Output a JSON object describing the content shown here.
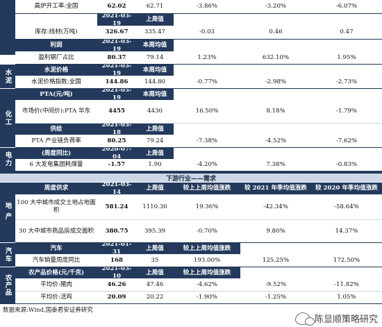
{
  "rows_top": [
    {
      "label": "高炉开工率:全国",
      "v1": "62.02",
      "v2": "62.71",
      "c1": "-3.86%",
      "c2": "-3.20%",
      "c3": "-6.07%"
    },
    {
      "label": "",
      "v1": "2021-03-19",
      "v2": "上周值",
      "header": true
    },
    {
      "label": "库存:线材(万吨)",
      "v1": "326.67",
      "v2": "335.47",
      "c1": "-0.03",
      "c2": "0.46",
      "c3": "0.47"
    },
    {
      "label": "利润",
      "v1": "2021-03-19",
      "v2": "本周均值",
      "header": true
    },
    {
      "label": "盈利钢厂占比",
      "v1": "80.37",
      "v2": "79.14",
      "c1": "1.23%",
      "c2": "632.10%",
      "c3": "1.95%"
    }
  ],
  "sections": {
    "cement": "水泥",
    "chemical": "化工",
    "power": "电力",
    "realestate": "地产",
    "auto": "汽车",
    "agri": "农产品"
  },
  "cement_header": {
    "label": "水泥价格",
    "date": "2021-03-19",
    "col": "本周均值"
  },
  "cement_row": {
    "label": "水泥价格指数:全国",
    "v1": "144.86",
    "v2": "144.80",
    "c1": "-0.77%",
    "c2": "-2.98%",
    "c3": "-2.73%"
  },
  "pta_header": {
    "label": "PTA(元/吨)",
    "date": "2021-03-19",
    "col": "本周均值"
  },
  "pta_row": {
    "label": "市场价(中间价):PTA 华东",
    "v1": "4455",
    "v2": "4430",
    "c1": "16.50%",
    "c2": "8.18%",
    "c3": "-1.79%"
  },
  "pta2_header": {
    "label": "供给",
    "date": "2021-03-18",
    "col": "上周值"
  },
  "pta2_row": {
    "label": "PTA 产业链负荷率",
    "v1": "80.25",
    "v2": "79.24",
    "c1": "-7.38%",
    "c2": "-4.52%",
    "c3": "-7.62%"
  },
  "power_header": {
    "label": "(周度同比)",
    "date": "2020-07-04",
    "col": "上周值"
  },
  "power_row": {
    "label": "6 大发电集团耗煤量",
    "v1": "-1.57",
    "v2": "1.90",
    "c1": "-4.20%",
    "c2": "7.38%",
    "c3": "-0.83%"
  },
  "banner": "下游行业——需求",
  "demand_header": {
    "label": "周度供求",
    "date": "2021-03-14",
    "col": "上周值",
    "h1": "较上上周均值涨跌",
    "h2": "较 2021 年季均值涨跌",
    "h3": "较 2020 年季均值涨跌"
  },
  "land_row": {
    "label": "100 大中城市成交土地占地面积",
    "v1": "581.24",
    "v2": "1110.30",
    "c1": "19.36%",
    "c2": "-42.34%",
    "c3": "-58.64%"
  },
  "house_row": {
    "label": "30 大中城市商品房成交面积",
    "v1": "380.75",
    "v2": "395.39",
    "c1": "-0.70%",
    "c2": "9.80%",
    "c3": "14.37%"
  },
  "auto_header": {
    "label": "汽车",
    "date": "2021-01-31",
    "col": "上周值",
    "h1": "较上上周均值涨跌"
  },
  "auto_row": {
    "label": "汽车销量周度同比",
    "v1": "168",
    "v2": "35",
    "c1": "193.00%",
    "c2": "125.25%",
    "c3": "172.50%"
  },
  "agri_header": {
    "label": "农产品价格(元/千克)",
    "date": "2021-03-10",
    "col": "上周值",
    "h1": "较上上周均值涨跌"
  },
  "pork_row": {
    "label": "平均价:猪肉",
    "v1": "46.26",
    "v2": "47.46",
    "c1": "-4.62%",
    "c2": "-9.52%",
    "c3": "-11.82%"
  },
  "chicken_row": {
    "label": "平均价:活鸡",
    "v1": "20.09",
    "v2": "20.22",
    "c1": "-1.90%",
    "c2": "-1.25%",
    "c3": "1.05%"
  },
  "source": "数据来源:Wind,国泰君安证券研究",
  "watermark": "陈显顺策略研究",
  "colors": {
    "navy": "#233a5c",
    "banner": "#cdd7e6"
  }
}
